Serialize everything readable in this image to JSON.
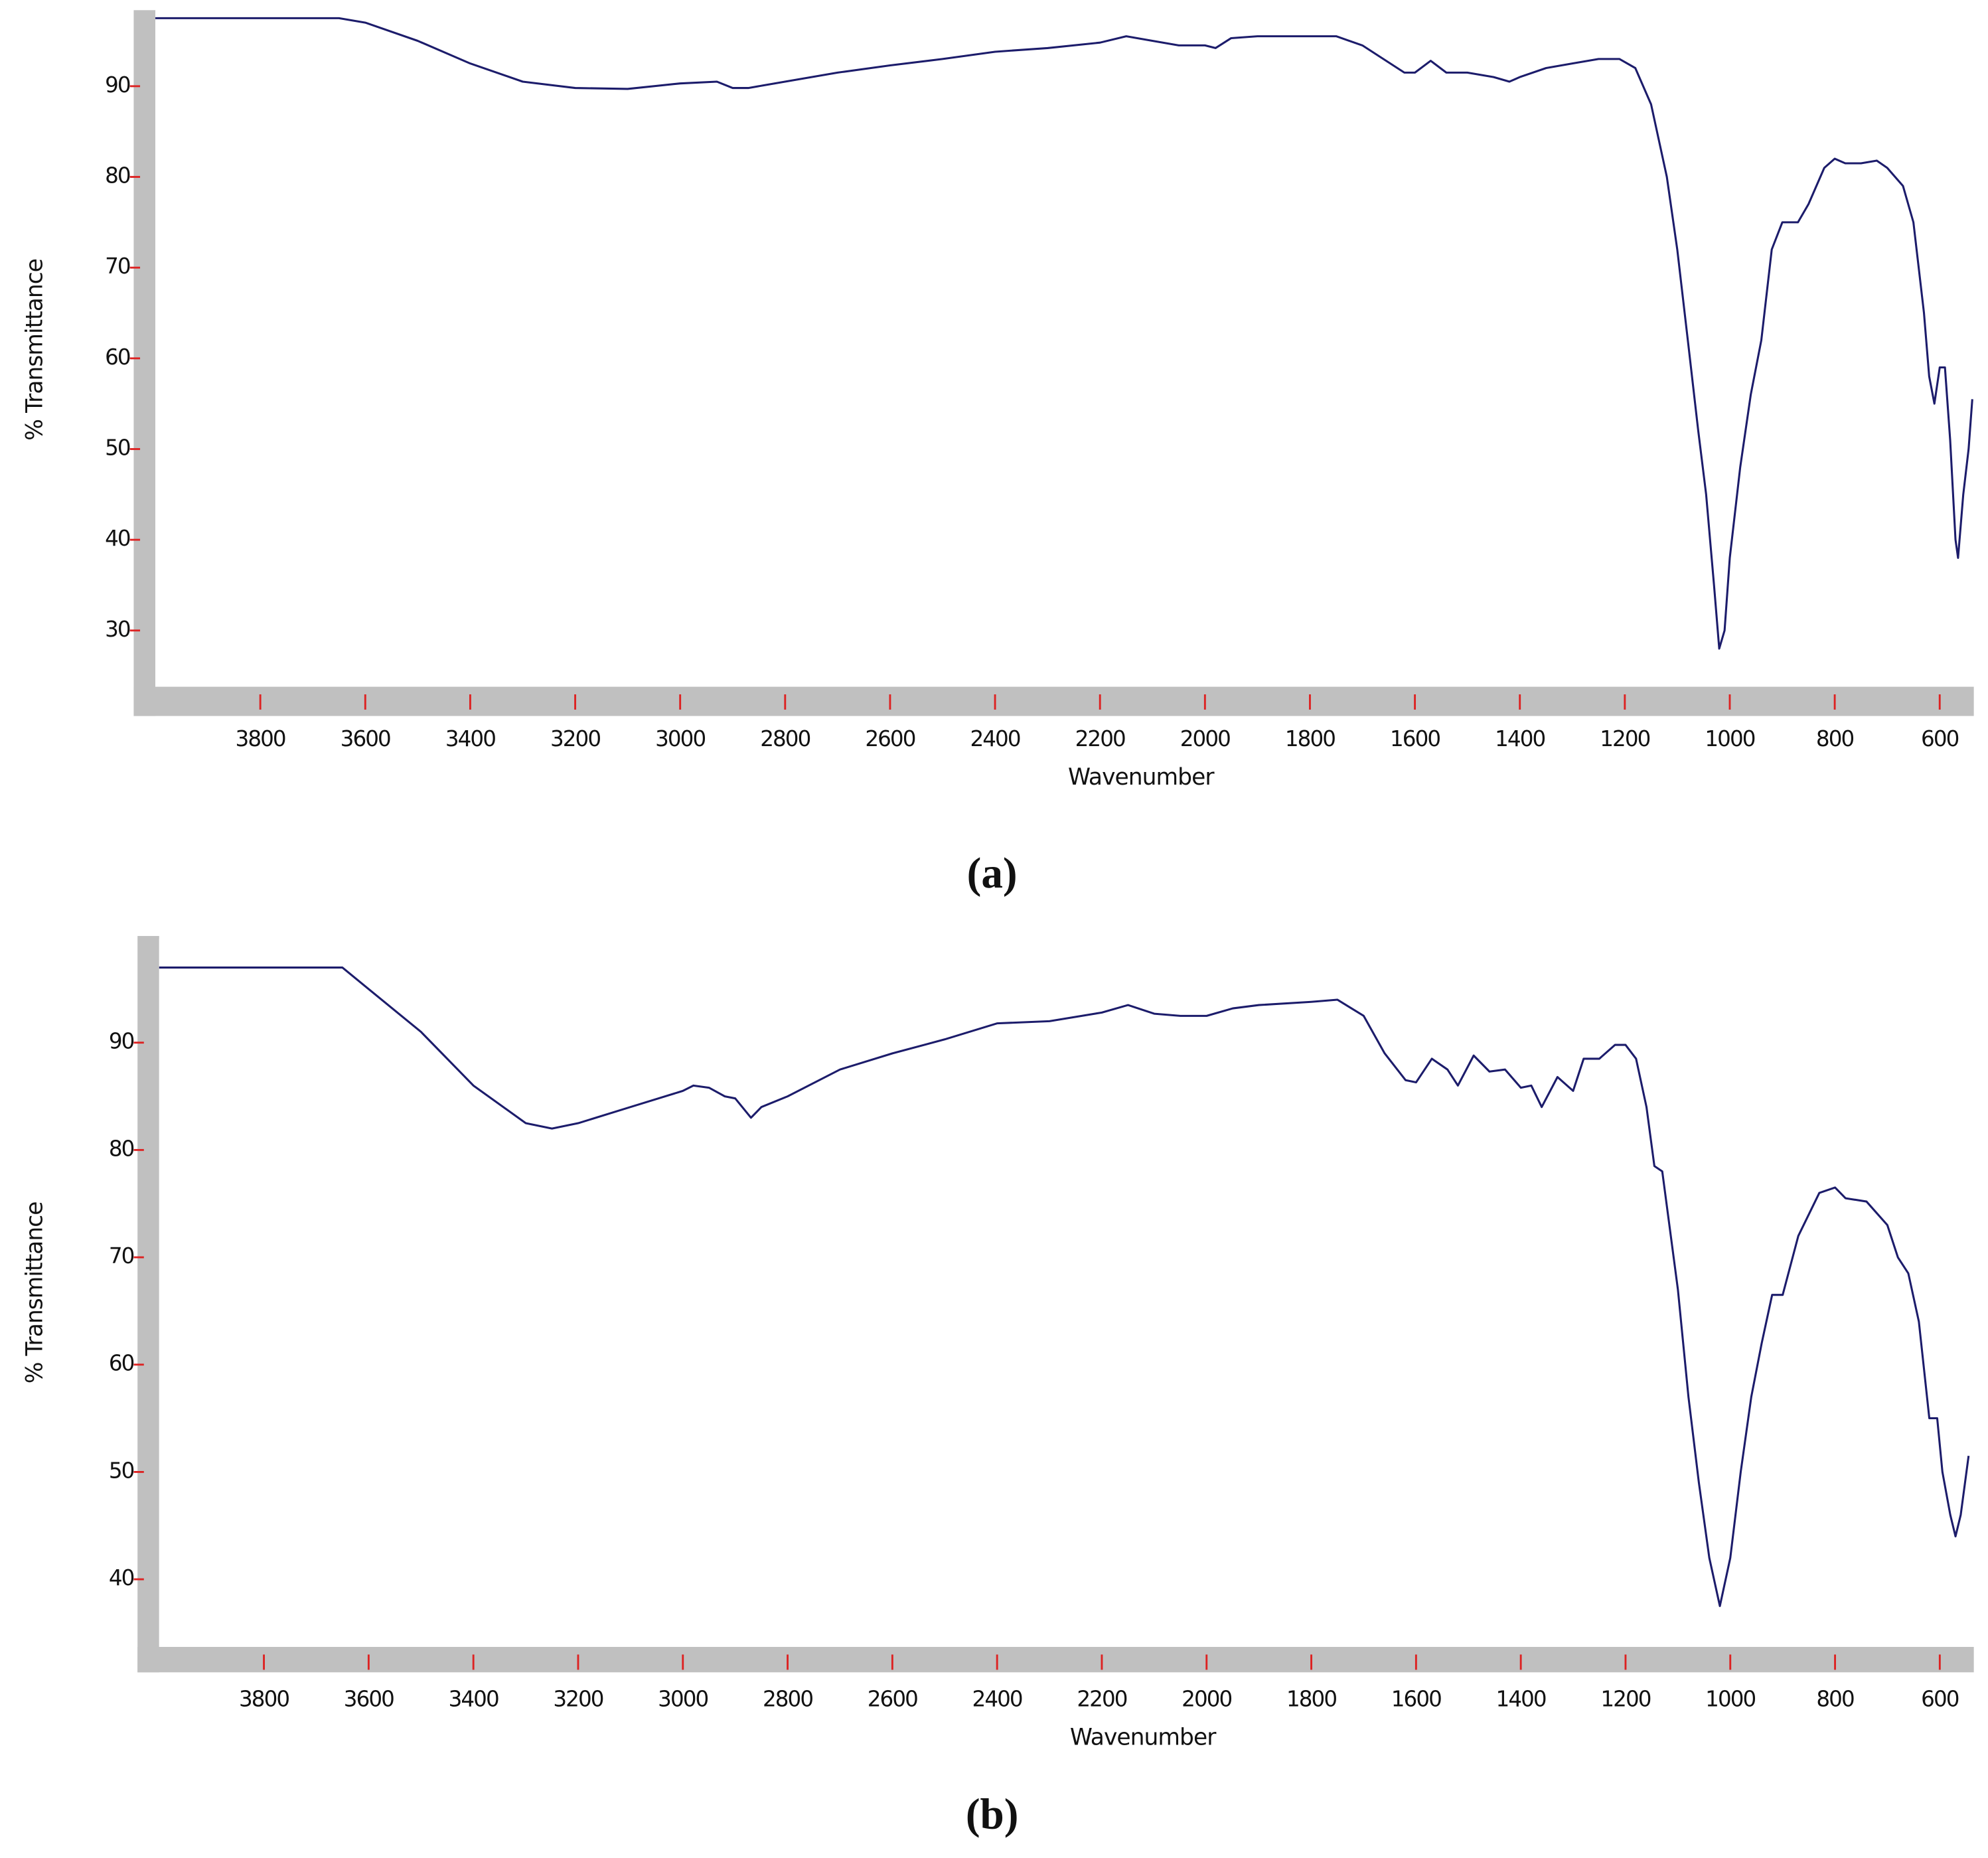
{
  "chart_data": [
    {
      "type": "line",
      "title": "(a)",
      "x_label": "Wavenumber",
      "y_label": "% Transmittance",
      "xlim": [
        4000,
        535
      ],
      "ylim": [
        23.8,
        98.1
      ],
      "xticks": [
        3800,
        3600,
        3400,
        3200,
        3000,
        2800,
        2600,
        2400,
        2200,
        2000,
        1800,
        1600,
        1400,
        1200,
        1000,
        800,
        600
      ],
      "yticks": [
        30,
        40,
        50,
        60,
        70,
        80,
        90
      ],
      "x": [
        4000,
        3650,
        3600,
        3500,
        3400,
        3300,
        3200,
        3100,
        3000,
        2930,
        2900,
        2870,
        2800,
        2700,
        2600,
        2500,
        2400,
        2300,
        2200,
        2150,
        2100,
        2050,
        2000,
        1980,
        1950,
        1900,
        1800,
        1750,
        1700,
        1660,
        1620,
        1600,
        1570,
        1540,
        1500,
        1450,
        1420,
        1400,
        1350,
        1300,
        1250,
        1210,
        1180,
        1150,
        1120,
        1100,
        1080,
        1060,
        1045,
        1030,
        1020,
        1010,
        1000,
        980,
        960,
        940,
        920,
        900,
        870,
        850,
        820,
        800,
        780,
        750,
        720,
        700,
        670,
        650,
        630,
        620,
        610,
        600,
        590,
        580,
        570,
        565,
        555,
        545,
        538
      ],
      "series": [
        {
          "color": "#1c1c6b",
          "values": [
            97.5,
            97.5,
            97,
            95,
            92.5,
            90.5,
            89.8,
            89.7,
            90.3,
            90.5,
            89.8,
            89.8,
            90.5,
            91.5,
            92.3,
            93,
            93.8,
            94.2,
            94.8,
            95.5,
            95,
            94.5,
            94.5,
            94.2,
            95.3,
            95.5,
            95.5,
            95.5,
            94.5,
            93,
            91.5,
            91.5,
            92.8,
            91.5,
            91.5,
            91,
            90.5,
            91,
            92,
            92.5,
            93,
            93,
            92,
            88,
            80,
            72,
            62,
            52,
            45,
            35,
            28,
            30,
            38,
            48,
            56,
            62,
            72,
            75,
            75,
            77,
            81,
            82,
            81.5,
            81.5,
            81.8,
            81,
            79,
            75,
            65,
            58,
            55,
            59,
            59,
            51,
            40,
            38,
            45,
            50,
            55.5
          ]
        }
      ]
    },
    {
      "type": "line",
      "title": "(b)",
      "x_label": "Wavenumber",
      "y_label": "% Transmittance",
      "xlim": [
        4000,
        535
      ],
      "ylim": [
        33.7,
        99.7
      ],
      "xticks": [
        3800,
        3600,
        3400,
        3200,
        3000,
        2800,
        2600,
        2400,
        2200,
        2000,
        1800,
        1600,
        1400,
        1200,
        1000,
        800,
        600
      ],
      "yticks": [
        40,
        50,
        60,
        70,
        80,
        90
      ],
      "x": [
        4000,
        3650,
        3600,
        3500,
        3400,
        3300,
        3250,
        3200,
        3100,
        3000,
        2980,
        2950,
        2920,
        2900,
        2870,
        2850,
        2800,
        2700,
        2600,
        2500,
        2400,
        2300,
        2200,
        2150,
        2100,
        2050,
        2000,
        1950,
        1900,
        1800,
        1750,
        1700,
        1660,
        1620,
        1600,
        1570,
        1540,
        1520,
        1490,
        1460,
        1430,
        1400,
        1380,
        1360,
        1330,
        1300,
        1280,
        1250,
        1220,
        1200,
        1180,
        1160,
        1145,
        1130,
        1100,
        1080,
        1060,
        1040,
        1020,
        1000,
        980,
        960,
        940,
        920,
        900,
        870,
        830,
        800,
        780,
        740,
        700,
        680,
        660,
        640,
        620,
        605,
        595,
        580,
        570,
        560,
        545
      ],
      "series": [
        {
          "color": "#1c1c6b",
          "values": [
            97,
            97,
            95,
            91,
            86,
            82.5,
            82,
            82.5,
            84,
            85.5,
            86,
            85.8,
            85,
            84.8,
            83,
            84,
            85,
            87.5,
            89,
            90.3,
            91.8,
            92,
            92.8,
            93.5,
            92.7,
            92.5,
            92.5,
            93.2,
            93.5,
            93.8,
            94,
            92.5,
            89,
            86.5,
            86.3,
            88.5,
            87.5,
            86,
            88.8,
            87.3,
            87.5,
            85.8,
            86,
            84,
            86.8,
            85.5,
            88.5,
            88.5,
            89.8,
            89.8,
            88.5,
            84,
            78.5,
            78,
            67,
            57,
            49,
            42,
            37.5,
            42,
            50,
            57,
            62,
            66.5,
            66.5,
            72,
            76,
            76.5,
            75.5,
            75.2,
            73,
            70,
            68.5,
            64,
            55,
            55,
            50,
            46,
            44,
            46,
            51.5
          ]
        }
      ]
    }
  ]
}
